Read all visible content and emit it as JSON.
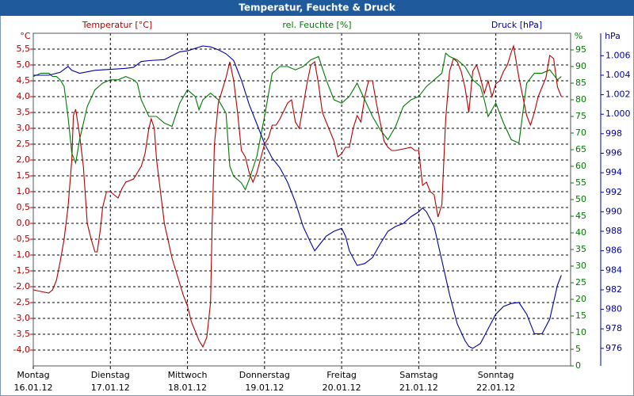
{
  "chart_data": {
    "type": "line",
    "title": "Temperatur, Feuchte & Druck",
    "y_unit": "°C",
    "y2_unit": "%",
    "y3_unit": "hPa",
    "xlim": [
      0,
      6.97
    ],
    "xticks": [
      {
        "value": 0,
        "label": "Montag"
      },
      {
        "value": 1,
        "label": "Dienstag"
      },
      {
        "value": 2,
        "label": "Mittwoch"
      },
      {
        "value": 3,
        "label": "Donnerstag"
      },
      {
        "value": 4,
        "label": "Freitag"
      },
      {
        "value": 5,
        "label": "Samstag"
      },
      {
        "value": 6,
        "label": "Sonntag"
      }
    ],
    "xtick_dates": [
      "16.01.12",
      "17.01.12",
      "18.01.12",
      "19.01.12",
      "20.01.12",
      "21.01.12",
      "22.01.12"
    ],
    "ylim": [
      -4.5,
      6.0
    ],
    "yticks": [
      {
        "value": -4.0,
        "label": "-4,0"
      },
      {
        "value": -3.5,
        "label": "-3,5"
      },
      {
        "value": -3.0,
        "label": "-3,0"
      },
      {
        "value": -2.5,
        "label": "-2,5"
      },
      {
        "value": -2.0,
        "label": "-2,0"
      },
      {
        "value": -1.5,
        "label": "-1,5"
      },
      {
        "value": -1.0,
        "label": "-1,0"
      },
      {
        "value": -0.5,
        "label": "-0,5"
      },
      {
        "value": 0,
        "label": "0,0"
      },
      {
        "value": 0.5,
        "label": "0,5"
      },
      {
        "value": 1.0,
        "label": "1,0"
      },
      {
        "value": 1.5,
        "label": "1,5"
      },
      {
        "value": 2.0,
        "label": "2,0"
      },
      {
        "value": 2.5,
        "label": "2,5"
      },
      {
        "value": 3.0,
        "label": "3,0"
      },
      {
        "value": 3.5,
        "label": "3,5"
      },
      {
        "value": 4.0,
        "label": "4,0"
      },
      {
        "value": 4.5,
        "label": "4,5"
      },
      {
        "value": 5.0,
        "label": "5,0"
      },
      {
        "value": 5.5,
        "label": "5,5"
      }
    ],
    "y2lim": [
      0,
      100
    ],
    "y2ticks": [
      0,
      5,
      10,
      15,
      20,
      25,
      30,
      35,
      40,
      45,
      50,
      55,
      60,
      65,
      70,
      75,
      80,
      85,
      90,
      95
    ],
    "y3lim": [
      974.2,
      1008.3
    ],
    "y3ticks": [
      976,
      978,
      980,
      982,
      984,
      986,
      988,
      990,
      992,
      994,
      996,
      998,
      {
        "value": 1000,
        "label": "1.000"
      },
      {
        "value": 1002,
        "label": "1.002"
      },
      {
        "value": 1004,
        "label": "1.004"
      },
      {
        "value": 1006,
        "label": "1.006"
      }
    ],
    "grid": true,
    "series": [
      {
        "name": "Temperatur [°C]",
        "color": "#b00000",
        "axis": "y",
        "x": [
          0,
          0.1,
          0.2,
          0.25,
          0.3,
          0.35,
          0.4,
          0.45,
          0.5,
          0.52,
          0.55,
          0.6,
          0.65,
          0.7,
          0.75,
          0.8,
          0.83,
          0.87,
          0.9,
          0.95,
          1.0,
          1.05,
          1.1,
          1.15,
          1.2,
          1.3,
          1.4,
          1.45,
          1.5,
          1.53,
          1.57,
          1.6,
          1.7,
          1.8,
          1.9,
          1.95,
          2.0,
          2.05,
          2.1,
          2.15,
          2.2,
          2.25,
          2.3,
          2.32,
          2.35,
          2.4,
          2.5,
          2.55,
          2.6,
          2.65,
          2.7,
          2.75,
          2.8,
          2.85,
          2.9,
          3.0,
          3.05,
          3.1,
          3.15,
          3.2,
          3.3,
          3.35,
          3.4,
          3.45,
          3.5,
          3.55,
          3.6,
          3.65,
          3.7,
          3.75,
          3.8,
          3.85,
          3.9,
          3.95,
          4.0,
          4.05,
          4.1,
          4.15,
          4.2,
          4.25,
          4.3,
          4.35,
          4.4,
          4.45,
          4.5,
          4.55,
          4.6,
          4.65,
          4.7,
          4.8,
          4.9,
          4.95,
          5.0,
          5.05,
          5.1,
          5.15,
          5.2,
          5.25,
          5.3,
          5.35,
          5.4,
          5.45,
          5.5,
          5.55,
          5.6,
          5.65,
          5.7,
          5.75,
          5.8,
          5.85,
          5.9,
          5.95,
          6.0,
          6.05,
          6.1,
          6.15,
          6.2,
          6.23,
          6.3,
          6.35,
          6.4,
          6.45,
          6.5,
          6.55,
          6.6,
          6.65,
          6.7,
          6.75,
          6.8,
          6.85,
          6.88
        ],
        "values": [
          -2.1,
          -2.15,
          -2.2,
          -2.1,
          -1.8,
          -1.2,
          -0.5,
          0.5,
          2.0,
          3.4,
          3.6,
          2.8,
          1.8,
          0.0,
          -0.5,
          -0.9,
          -0.9,
          -0.2,
          0.5,
          1.0,
          1.0,
          0.9,
          0.8,
          1.1,
          1.3,
          1.4,
          1.8,
          2.2,
          3.0,
          3.3,
          3.0,
          2.0,
          0.0,
          -1.1,
          -1.9,
          -2.3,
          -2.6,
          -3.1,
          -3.4,
          -3.7,
          -3.9,
          -3.6,
          -2.5,
          0.0,
          2.5,
          3.8,
          4.6,
          5.1,
          4.5,
          3.5,
          2.3,
          2.1,
          1.6,
          1.3,
          1.6,
          2.5,
          2.7,
          3.1,
          3.1,
          3.3,
          3.8,
          3.9,
          3.2,
          3.0,
          3.7,
          4.4,
          5.0,
          5.1,
          4.4,
          3.5,
          3.2,
          2.9,
          2.6,
          2.1,
          2.2,
          2.4,
          2.4,
          3.0,
          3.4,
          3.2,
          4.0,
          4.5,
          4.5,
          3.8,
          3.2,
          2.6,
          2.4,
          2.3,
          2.3,
          2.35,
          2.4,
          2.3,
          2.3,
          1.2,
          1.3,
          1.0,
          0.9,
          0.2,
          0.6,
          3.3,
          4.8,
          5.2,
          5.1,
          4.8,
          4.3,
          3.5,
          4.8,
          5.0,
          4.6,
          4.1,
          4.5,
          4.0,
          4.4,
          4.5,
          4.8,
          5.0,
          5.4,
          5.6,
          4.6,
          4.0,
          3.4,
          3.1,
          3.5,
          4.0,
          4.3,
          4.6,
          5.3,
          5.2,
          4.3,
          4.0,
          4.0
        ]
      },
      {
        "name": "rel. Feuchte [%]",
        "color": "#007800",
        "axis": "y2",
        "x": [
          0,
          0.1,
          0.2,
          0.25,
          0.3,
          0.35,
          0.4,
          0.45,
          0.5,
          0.55,
          0.6,
          0.7,
          0.8,
          0.9,
          1.0,
          1.1,
          1.2,
          1.3,
          1.35,
          1.4,
          1.5,
          1.6,
          1.7,
          1.8,
          1.9,
          2.0,
          2.1,
          2.15,
          2.2,
          2.3,
          2.4,
          2.5,
          2.55,
          2.6,
          2.7,
          2.75,
          2.8,
          2.9,
          3.0,
          3.1,
          3.2,
          3.3,
          3.4,
          3.5,
          3.6,
          3.7,
          3.8,
          3.9,
          4.0,
          4.1,
          4.2,
          4.3,
          4.4,
          4.5,
          4.6,
          4.7,
          4.8,
          4.9,
          5.0,
          5.1,
          5.2,
          5.3,
          5.35,
          5.4,
          5.5,
          5.6,
          5.7,
          5.8,
          5.85,
          5.9,
          6.0,
          6.1,
          6.2,
          6.3,
          6.4,
          6.5,
          6.6,
          6.7,
          6.8,
          6.85
        ],
        "values": [
          87,
          88,
          88,
          87,
          87,
          86,
          84,
          75,
          64,
          61,
          68,
          78,
          83,
          85,
          86,
          86,
          87,
          86,
          85,
          80,
          75,
          75,
          73,
          72,
          79,
          83,
          81,
          77,
          80,
          82,
          80,
          76,
          60,
          57,
          55,
          53,
          56,
          63,
          75,
          88,
          90,
          90,
          89,
          90,
          92,
          93,
          86,
          80,
          79,
          81,
          85,
          80,
          75,
          71,
          68,
          72,
          78,
          80,
          81,
          84,
          86,
          88,
          94,
          93,
          92,
          90,
          86,
          84,
          80,
          75,
          79,
          73,
          68,
          67,
          85,
          88,
          88,
          89,
          86,
          87
        ]
      },
      {
        "name": "Druck [hPa]",
        "color": "#0000a0",
        "axis": "y3",
        "x": [
          0,
          0.2,
          0.35,
          0.45,
          0.5,
          0.6,
          0.8,
          1.0,
          1.2,
          1.3,
          1.4,
          1.5,
          1.7,
          1.8,
          1.9,
          2.0,
          2.2,
          2.3,
          2.4,
          2.5,
          2.6,
          2.7,
          2.8,
          2.9,
          3.0,
          3.1,
          3.2,
          3.3,
          3.4,
          3.5,
          3.6,
          3.65,
          3.7,
          3.8,
          3.9,
          4.0,
          4.05,
          4.1,
          4.2,
          4.3,
          4.4,
          4.5,
          4.6,
          4.7,
          4.8,
          4.9,
          5.0,
          5.05,
          5.1,
          5.2,
          5.3,
          5.4,
          5.5,
          5.6,
          5.65,
          5.7,
          5.8,
          5.9,
          6.0,
          6.1,
          6.2,
          6.3,
          6.4,
          6.5,
          6.6,
          6.7,
          6.8,
          6.85
        ],
        "values": [
          1004.0,
          1004.0,
          1004.3,
          1004.9,
          1004.5,
          1004.2,
          1004.5,
          1004.6,
          1004.7,
          1004.8,
          1005.4,
          1005.5,
          1005.6,
          1006.0,
          1006.4,
          1006.5,
          1007.0,
          1006.9,
          1006.6,
          1006.2,
          1005.5,
          1003.5,
          1001.0,
          999.0,
          997.0,
          995.5,
          994.5,
          993.0,
          991.0,
          988.5,
          986.8,
          986.0,
          986.5,
          987.5,
          988.0,
          988.3,
          987.5,
          986.0,
          984.5,
          984.7,
          985.3,
          986.7,
          988.0,
          988.5,
          988.8,
          989.5,
          990.0,
          990.4,
          990.0,
          988.5,
          985.0,
          981.5,
          978.5,
          976.8,
          976.2,
          976.0,
          976.5,
          978.0,
          979.5,
          980.3,
          980.6,
          980.7,
          979.5,
          977.5,
          977.5,
          979.0,
          982.5,
          983.5
        ]
      }
    ]
  }
}
